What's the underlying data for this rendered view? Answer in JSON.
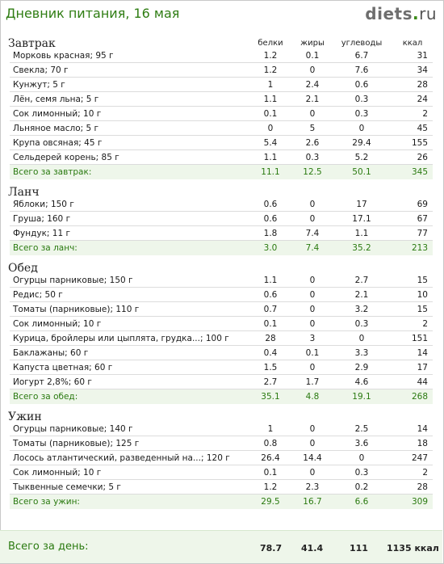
{
  "header": {
    "title": "Дневник питания, 16 мая",
    "logo_main": "diets",
    "logo_dot": ".",
    "logo_tld": "ru"
  },
  "columns": {
    "protein": "белки",
    "fat": "жиры",
    "carbs": "углеводы",
    "kcal": "ккал"
  },
  "meals": [
    {
      "name": "Завтрак",
      "items": [
        {
          "name": "Морковь красная; 95 г",
          "p": "1.2",
          "f": "0.1",
          "c": "6.7",
          "k": "31"
        },
        {
          "name": "Свекла; 70 г",
          "p": "1.2",
          "f": "0",
          "c": "7.6",
          "k": "34"
        },
        {
          "name": "Кунжут; 5 г",
          "p": "1",
          "f": "2.4",
          "c": "0.6",
          "k": "28"
        },
        {
          "name": "Лён, семя льна; 5 г",
          "p": "1.1",
          "f": "2.1",
          "c": "0.3",
          "k": "24"
        },
        {
          "name": "Сок лимонный; 10 г",
          "p": "0.1",
          "f": "0",
          "c": "0.3",
          "k": "2"
        },
        {
          "name": "Льняное масло; 5 г",
          "p": "0",
          "f": "5",
          "c": "0",
          "k": "45"
        },
        {
          "name": "Крупа овсяная; 45 г",
          "p": "5.4",
          "f": "2.6",
          "c": "29.4",
          "k": "155"
        },
        {
          "name": "Сельдерей корень; 85 г",
          "p": "1.1",
          "f": "0.3",
          "c": "5.2",
          "k": "26"
        }
      ],
      "total": {
        "name": "Всего за завтрак:",
        "p": "11.1",
        "f": "12.5",
        "c": "50.1",
        "k": "345"
      }
    },
    {
      "name": "Ланч",
      "items": [
        {
          "name": "Яблоки; 150 г",
          "p": "0.6",
          "f": "0",
          "c": "17",
          "k": "69"
        },
        {
          "name": "Груша; 160 г",
          "p": "0.6",
          "f": "0",
          "c": "17.1",
          "k": "67"
        },
        {
          "name": "Фундук; 11 г",
          "p": "1.8",
          "f": "7.4",
          "c": "1.1",
          "k": "77"
        }
      ],
      "total": {
        "name": "Всего за ланч:",
        "p": "3.0",
        "f": "7.4",
        "c": "35.2",
        "k": "213"
      }
    },
    {
      "name": "Обед",
      "items": [
        {
          "name": "Огурцы парниковые; 150 г",
          "p": "1.1",
          "f": "0",
          "c": "2.7",
          "k": "15"
        },
        {
          "name": "Редис; 50 г",
          "p": "0.6",
          "f": "0",
          "c": "2.1",
          "k": "10"
        },
        {
          "name": "Томаты (парниковые); 110 г",
          "p": "0.7",
          "f": "0",
          "c": "3.2",
          "k": "15"
        },
        {
          "name": "Сок лимонный; 10 г",
          "p": "0.1",
          "f": "0",
          "c": "0.3",
          "k": "2"
        },
        {
          "name": "Курица, бройлеры или цыплята, грудка...; 100 г",
          "p": "28",
          "f": "3",
          "c": "0",
          "k": "151"
        },
        {
          "name": "Баклажаны; 60 г",
          "p": "0.4",
          "f": "0.1",
          "c": "3.3",
          "k": "14"
        },
        {
          "name": "Капуста цветная; 60 г",
          "p": "1.5",
          "f": "0",
          "c": "2.9",
          "k": "17"
        },
        {
          "name": "Иогурт 2,8%; 60 г",
          "p": "2.7",
          "f": "1.7",
          "c": "4.6",
          "k": "44"
        }
      ],
      "total": {
        "name": "Всего за обед:",
        "p": "35.1",
        "f": "4.8",
        "c": "19.1",
        "k": "268"
      }
    },
    {
      "name": "Ужин",
      "items": [
        {
          "name": "Огурцы парниковые; 140 г",
          "p": "1",
          "f": "0",
          "c": "2.5",
          "k": "14"
        },
        {
          "name": "Томаты (парниковые); 125 г",
          "p": "0.8",
          "f": "0",
          "c": "3.6",
          "k": "18"
        },
        {
          "name": "Лосось атлантический, разведенный на...; 120 г",
          "p": "26.4",
          "f": "14.4",
          "c": "0",
          "k": "247"
        },
        {
          "name": "Сок лимонный; 10 г",
          "p": "0.1",
          "f": "0",
          "c": "0.3",
          "k": "2"
        },
        {
          "name": "Тыквенные семечки; 5 г",
          "p": "1.2",
          "f": "2.3",
          "c": "0.2",
          "k": "28"
        }
      ],
      "total": {
        "name": "Всего за ужин:",
        "p": "29.5",
        "f": "16.7",
        "c": "6.6",
        "k": "309"
      }
    }
  ],
  "day_total": {
    "label": "Всего за день:",
    "p": "78.7",
    "f": "41.4",
    "c": "111",
    "k": "1135 ккал"
  },
  "colors": {
    "accent_green": "#2f7d13",
    "total_row_bg": "#eef6ea",
    "row_divider": "#dcdcdc"
  }
}
